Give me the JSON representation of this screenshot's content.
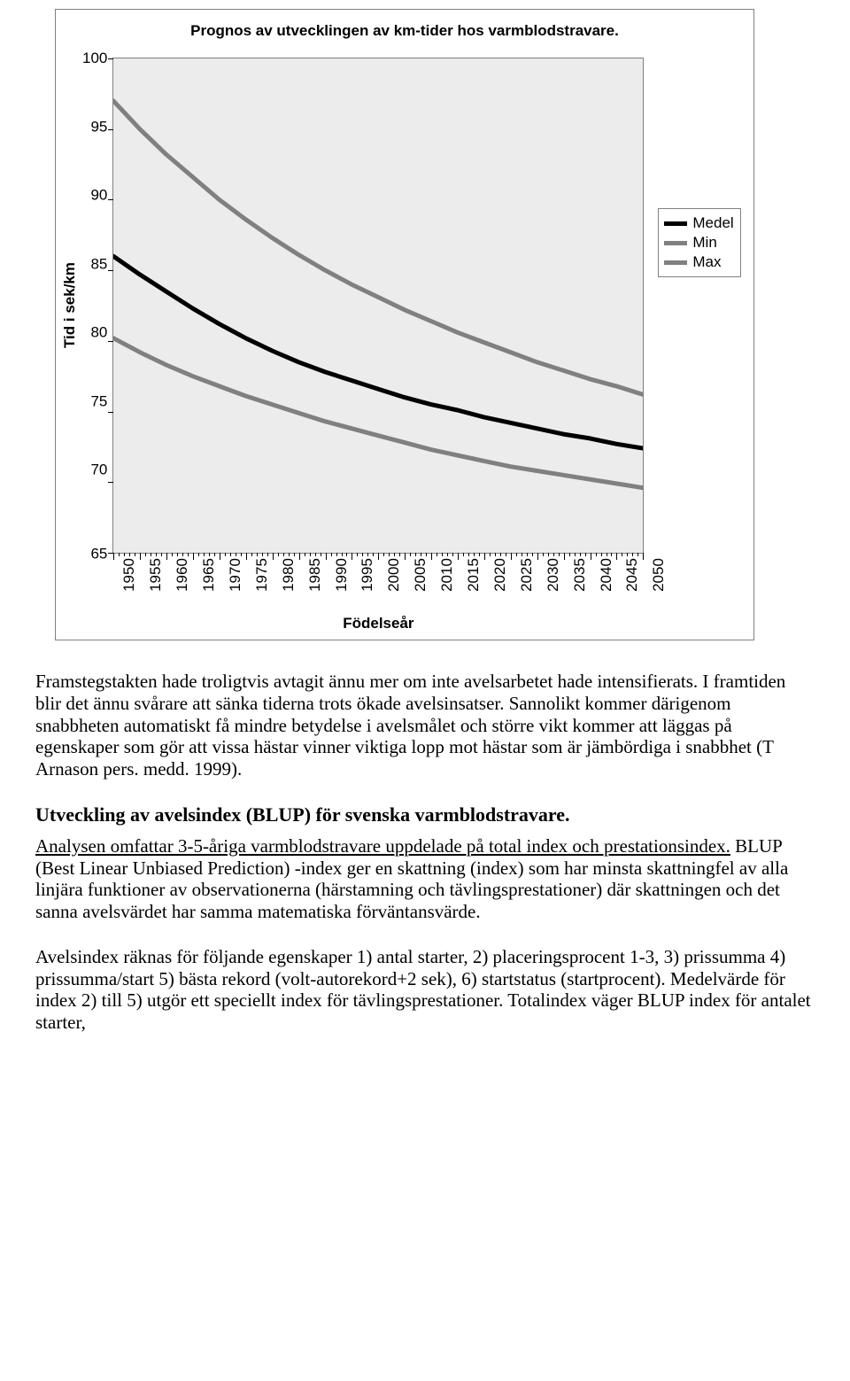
{
  "chart": {
    "type": "line",
    "title": "Prognos av utvecklingen av km-tider hos varmblodstravare.",
    "y_label": "Tid i sek/km",
    "x_label": "Födelseår",
    "ylim": [
      65,
      100
    ],
    "ytick_step": 5,
    "xticks": [
      "1950",
      "1955",
      "1960",
      "1965",
      "1970",
      "1975",
      "1980",
      "1985",
      "1990",
      "1995",
      "2000",
      "2005",
      "2010",
      "2015",
      "2020",
      "2025",
      "2030",
      "2035",
      "2040",
      "2045",
      "2050"
    ],
    "minor_per_major": 5,
    "background_color": "#ececec",
    "border_color": "#808080",
    "series": [
      {
        "name": "Medel",
        "color": "#000000",
        "width": 5,
        "points": [
          86.0,
          84.7,
          83.5,
          82.3,
          81.2,
          80.2,
          79.3,
          78.5,
          77.8,
          77.2,
          76.6,
          76.0,
          75.5,
          75.1,
          74.6,
          74.2,
          73.8,
          73.4,
          73.1,
          72.7,
          72.4
        ]
      },
      {
        "name": "Min",
        "color": "#808080",
        "width": 5,
        "points": [
          80.2,
          79.2,
          78.3,
          77.5,
          76.8,
          76.1,
          75.5,
          74.9,
          74.3,
          73.8,
          73.3,
          72.8,
          72.3,
          71.9,
          71.5,
          71.1,
          70.8,
          70.5,
          70.2,
          69.9,
          69.6
        ]
      },
      {
        "name": "Max",
        "color": "#808080",
        "width": 5,
        "points": [
          97.0,
          95.0,
          93.2,
          91.6,
          90.0,
          88.6,
          87.3,
          86.1,
          85.0,
          84.0,
          83.1,
          82.2,
          81.4,
          80.6,
          79.9,
          79.2,
          78.5,
          77.9,
          77.3,
          76.8,
          76.2
        ]
      }
    ]
  },
  "text": {
    "p1": "Framstegstakten hade troligtvis avtagit ännu mer om inte avelsarbetet hade intensifierats. I framtiden blir det ännu svårare att sänka tiderna trots ökade avelsinsatser. Sannolikt kommer därigenom snabbheten automatiskt få mindre betydelse i avelsmålet och större vikt kommer att läggas på egenskaper som gör att vissa hästar vinner viktiga lopp mot hästar som är jämbördiga i snabbhet (T Arnason pers. medd. 1999).",
    "h2": "Utveckling av avelsindex (BLUP) för svenska varmblodstravare.",
    "subline": "Analysen omfattar 3-5-åriga varmblodstravare uppdelade på total index och prestationsindex.",
    "p2": " BLUP (Best Linear Unbiased Prediction) -index ger en skattning (index) som har minsta skattningfel av alla linjära funktioner av observationerna (härstamning och tävlingsprestationer) där skattningen och det sanna avelsvärdet har samma matematiska förväntansvärde.",
    "p3": "Avelsindex räknas för följande egenskaper 1) antal starter, 2) placeringsprocent 1-3, 3) prissumma 4) prissumma/start 5) bästa rekord (volt-autorekord+2 sek), 6) startstatus (startprocent). Medelvärde för index 2) till 5) utgör ett speciellt index för tävlingsprestationer. Totalindex väger BLUP index för antalet starter,"
  }
}
